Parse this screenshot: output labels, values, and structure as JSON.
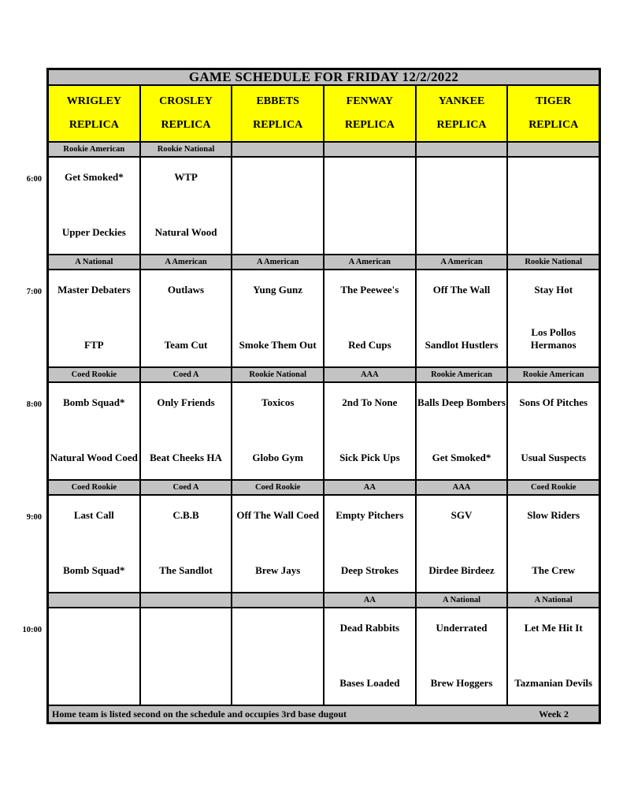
{
  "title": "GAME SCHEDULE FOR FRIDAY 12/2/2022",
  "fields": [
    {
      "name": "WRIGLEY",
      "type": "REPLICA"
    },
    {
      "name": "CROSLEY",
      "type": "REPLICA"
    },
    {
      "name": "EBBETS",
      "type": "REPLICA"
    },
    {
      "name": "FENWAY",
      "type": "REPLICA"
    },
    {
      "name": "YANKEE",
      "type": "REPLICA"
    },
    {
      "name": "TIGER",
      "type": "REPLICA"
    }
  ],
  "time_slots": [
    {
      "time": "6:00",
      "games": [
        {
          "division": "Rookie American",
          "away": "Get Smoked*",
          "home": "Upper Deckies"
        },
        {
          "division": "Rookie National",
          "away": "WTP",
          "home": "Natural Wood"
        },
        {
          "division": "",
          "away": "",
          "home": ""
        },
        {
          "division": "",
          "away": "",
          "home": ""
        },
        {
          "division": "",
          "away": "",
          "home": ""
        },
        {
          "division": "",
          "away": "",
          "home": ""
        }
      ]
    },
    {
      "time": "7:00",
      "games": [
        {
          "division": "A National",
          "away": "Master Debaters",
          "home": "FTP"
        },
        {
          "division": "A American",
          "away": "Outlaws",
          "home": "Team Cut"
        },
        {
          "division": "A American",
          "away": "Yung Gunz",
          "home": "Smoke Them Out"
        },
        {
          "division": "A American",
          "away": "The Peewee's",
          "home": "Red Cups"
        },
        {
          "division": "A American",
          "away": "Off The Wall",
          "home": "Sandlot Hustlers"
        },
        {
          "division": "Rookie National",
          "away": "Stay Hot",
          "home": "Los Pollos Hermanos"
        }
      ]
    },
    {
      "time": "8:00",
      "games": [
        {
          "division": "Coed Rookie",
          "away": "Bomb Squad*",
          "home": "Natural Wood Coed"
        },
        {
          "division": "Coed A",
          "away": "Only Friends",
          "home": "Beat Cheeks HA"
        },
        {
          "division": "Rookie National",
          "away": "Toxicos",
          "home": "Globo Gym"
        },
        {
          "division": "AAA",
          "away": "2nd To None",
          "home": "Sick Pick Ups"
        },
        {
          "division": "Rookie American",
          "away": "Balls Deep Bombers",
          "home": "Get Smoked*"
        },
        {
          "division": "Rookie American",
          "away": "Sons Of Pitches",
          "home": "Usual Suspects"
        }
      ]
    },
    {
      "time": "9:00",
      "games": [
        {
          "division": "Coed Rookie",
          "away": "Last Call",
          "home": "Bomb Squad*"
        },
        {
          "division": "Coed A",
          "away": "C.B.B",
          "home": "The Sandlot"
        },
        {
          "division": "Coed Rookie",
          "away": "Off The Wall Coed",
          "home": "Brew Jays"
        },
        {
          "division": "AA",
          "away": "Empty Pitchers",
          "home": "Deep Strokes"
        },
        {
          "division": "AAA",
          "away": "SGV",
          "home": "Dirdee Birdeez"
        },
        {
          "division": "Coed Rookie",
          "away": "Slow Riders",
          "home": "The Crew"
        }
      ]
    },
    {
      "time": "10:00",
      "games": [
        {
          "division": "",
          "away": "",
          "home": ""
        },
        {
          "division": "",
          "away": "",
          "home": ""
        },
        {
          "division": "",
          "away": "",
          "home": ""
        },
        {
          "division": "AA",
          "away": "Dead Rabbits",
          "home": "Bases Loaded"
        },
        {
          "division": "A National",
          "away": "Underrated",
          "home": "Brew Hoggers"
        },
        {
          "division": "A National",
          "away": "Let Me Hit It",
          "home": "Tazmanian Devils"
        }
      ]
    }
  ],
  "footer": {
    "note": "Home team is listed second on the schedule and occupies 3rd base dugout",
    "week": "Week 2"
  },
  "colors": {
    "field_header_bg": "#ffff00",
    "bar_bg": "#bfbfbf",
    "border": "#000000"
  }
}
